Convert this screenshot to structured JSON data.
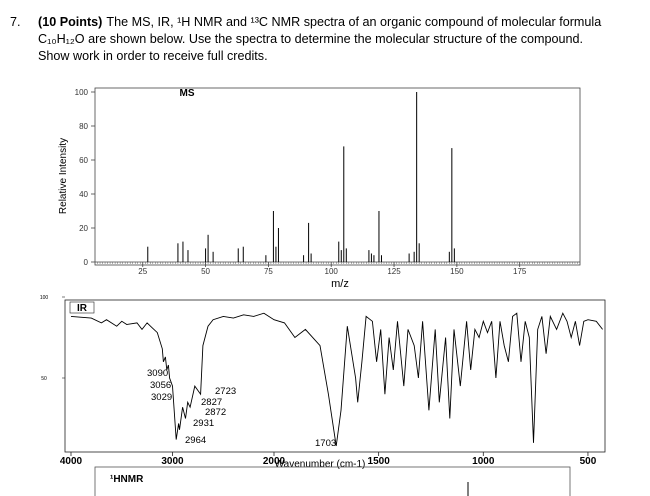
{
  "question": {
    "number": "7.",
    "points": "(10 Points)",
    "lines": [
      "The MS, IR, ¹H NMR and ¹³C NMR spectra of an organic compound of molecular formula",
      "C₁₀H₁₂O are shown below. Use the spectra to determine the molecular structure of the compound.",
      "Show work in order to receive full credits."
    ]
  },
  "ms": {
    "type": "bar",
    "title": "MS",
    "x_label": "m/z",
    "y_label": "Relative Intensity",
    "x": [
      27,
      39,
      41,
      43,
      50,
      51,
      53,
      63,
      65,
      74,
      77,
      78,
      79,
      89,
      91,
      92,
      103,
      104,
      105,
      106,
      115,
      116,
      117,
      119,
      120,
      131,
      133,
      134,
      135,
      147,
      148,
      149
    ],
    "values": [
      9,
      11,
      12,
      7,
      8,
      16,
      6,
      8,
      9,
      4,
      30,
      9,
      20,
      4,
      23,
      5,
      12,
      7,
      68,
      8,
      7,
      5,
      4,
      30,
      4,
      5,
      6,
      100,
      11,
      6,
      67,
      8
    ],
    "xlim": [
      6,
      199
    ],
    "ylim": [
      0,
      100
    ],
    "xticks": [
      25,
      50,
      75,
      100,
      125,
      150,
      175
    ],
    "yticks": [
      0,
      20,
      40,
      60,
      80,
      100
    ]
  },
  "ir": {
    "type": "line",
    "title": "IR",
    "x_label": "Wavenumber (cm-1)",
    "x": [
      4000,
      3800,
      3700,
      3650,
      3550,
      3500,
      3450,
      3350,
      3300,
      3250,
      3200,
      3150,
      3100,
      3090,
      3070,
      3056,
      3040,
      3029,
      3000,
      2964,
      2940,
      2931,
      2900,
      2872,
      2850,
      2827,
      2780,
      2723,
      2700,
      2650,
      2600,
      2500,
      2400,
      2300,
      2200,
      2100,
      2000,
      1950,
      1900,
      1850,
      1780,
      1740,
      1703,
      1680,
      1650,
      1610,
      1600,
      1580,
      1560,
      1530,
      1510,
      1490,
      1470,
      1450,
      1430,
      1410,
      1380,
      1360,
      1330,
      1310,
      1290,
      1260,
      1230,
      1210,
      1180,
      1160,
      1140,
      1110,
      1080,
      1060,
      1040,
      1020,
      1000,
      980,
      960,
      940,
      920,
      900,
      880,
      860,
      840,
      820,
      800,
      780,
      760,
      740,
      720,
      700,
      680,
      650,
      620,
      600,
      580,
      560,
      540,
      520,
      500,
      460,
      430
    ],
    "values": [
      88,
      87,
      84,
      86,
      82,
      85,
      83,
      84,
      80,
      84,
      81,
      78,
      68,
      60,
      63,
      55,
      58,
      50,
      45,
      12,
      22,
      18,
      32,
      25,
      35,
      32,
      45,
      40,
      70,
      82,
      86,
      88,
      87,
      89,
      88,
      90,
      86,
      84,
      75,
      80,
      70,
      40,
      8,
      30,
      82,
      50,
      35,
      60,
      88,
      85,
      60,
      80,
      40,
      75,
      55,
      85,
      45,
      80,
      70,
      50,
      85,
      30,
      80,
      35,
      75,
      25,
      80,
      45,
      85,
      55,
      80,
      75,
      85,
      78,
      85,
      50,
      85,
      70,
      60,
      88,
      90,
      60,
      85,
      75,
      10,
      80,
      88,
      65,
      88,
      80,
      90,
      85,
      75,
      85,
      70,
      85,
      86,
      85,
      80
    ],
    "xlim": [
      4000,
      419
    ],
    "ylim": [
      4,
      100
    ],
    "xticks": [
      4000,
      3000,
      2000,
      1500,
      1000,
      500
    ],
    "yticks": [
      50,
      100
    ],
    "annotations": [
      {
        "label": "3090",
        "x": 3090
      },
      {
        "label": "3056",
        "x": 3056
      },
      {
        "label": "3029",
        "x": 3029
      },
      {
        "label": "2723",
        "x": 2723
      },
      {
        "label": "2827",
        "x": 2827
      },
      {
        "label": "2872",
        "x": 2872
      },
      {
        "label": "2931",
        "x": 2931
      },
      {
        "label": "2964",
        "x": 2964
      },
      {
        "label": "1703",
        "x": 1703
      }
    ]
  },
  "hnmr": {
    "title": "¹HNMR"
  }
}
